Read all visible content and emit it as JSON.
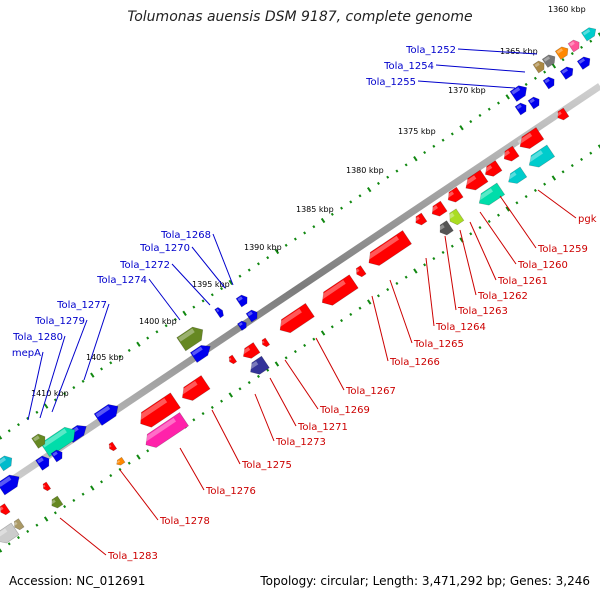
{
  "title": "Tolumonas auensis DSM 9187, complete genome",
  "footer": {
    "accession": "Accession: NC_012691",
    "summary": "Topology: circular; Length: 3,471,292 bp; Genes: 3,246"
  },
  "colors": {
    "backbone": "#8a8a8a",
    "dots": "#118811",
    "forward_label": "#0000cc",
    "reverse_label": "#cc0000"
  },
  "ticks": [
    "1360 kbp",
    "1365 kbp",
    "1370 kbp",
    "1375 kbp",
    "1380 kbp",
    "1385 kbp",
    "1390 kbp",
    "1395 kbp",
    "1400 kbp",
    "1405 kbp",
    "1410 kbp"
  ],
  "forward_genes": [
    "Tola_1252",
    "Tola_1254",
    "Tola_1255",
    "Tola_1268",
    "Tola_1270",
    "Tola_1272",
    "Tola_1274",
    "Tola_1277",
    "Tola_1279",
    "Tola_1280",
    "mepA"
  ],
  "reverse_genes": [
    "pgk",
    "Tola_1259",
    "Tola_1260",
    "Tola_1261",
    "Tola_1262",
    "Tola_1263",
    "Tola_1264",
    "Tola_1265",
    "Tola_1266",
    "Tola_1267",
    "Tola_1269",
    "Tola_1271",
    "Tola_1273",
    "Tola_1275",
    "Tola_1276",
    "Tola_1278",
    "Tola_1283"
  ]
}
